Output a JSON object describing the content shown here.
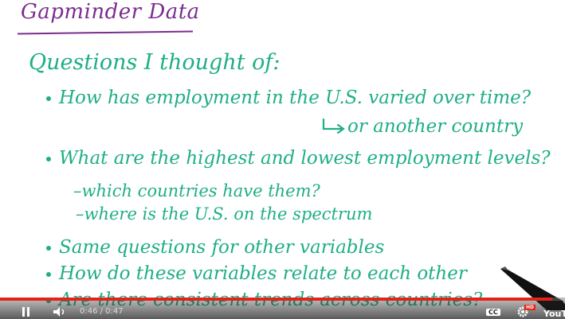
{
  "slide": {
    "title": "Gapminder Data",
    "heading": "Questions I thought of:",
    "bullets": [
      "How has employment in the U.S. varied over time?",
      "What are the highest and lowest employment levels?",
      "Same questions for other variables",
      "How do these variables relate to each other",
      "Are there consistent trends across countries?"
    ],
    "arrow_note": "or another country",
    "sub_items": [
      "–which countries have them?",
      "–where is the U.S. on the spectrum"
    ]
  },
  "player": {
    "time_display": "0:46 / 0:47",
    "progress_fraction": 0.978,
    "cc_label": "CC",
    "hd_label": "HD",
    "brand_label": "YouTu",
    "icons": [
      "pause-icon",
      "volume-icon",
      "settings-gear-icon"
    ]
  },
  "colors": {
    "title_ink": "#7b2c8f",
    "body_ink": "#1fae86",
    "progress": "#e62117"
  }
}
